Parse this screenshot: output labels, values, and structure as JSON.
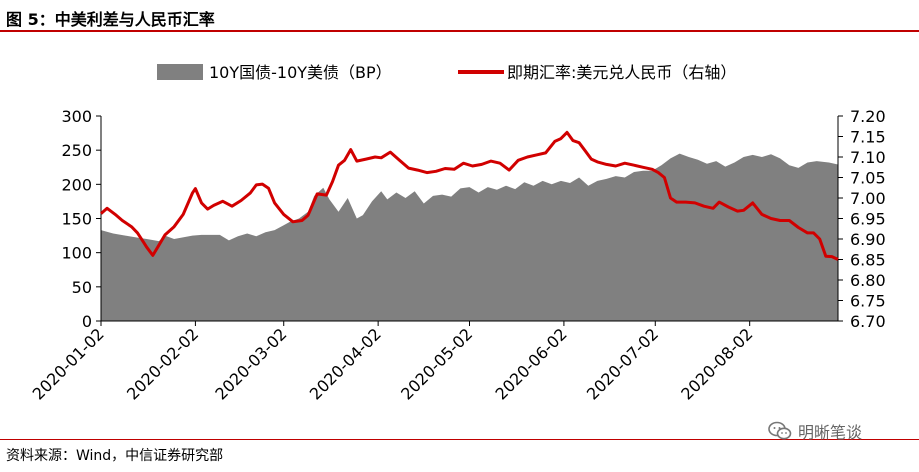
{
  "title": "图 5：中美利差与人民币汇率",
  "source": "资料来源：Wind，中信证券研究部",
  "watermark": "明晰笔谈",
  "chart_data": {
    "type": "area+line",
    "x_start": "2020-01-02",
    "x_end": "2020-08-31",
    "x_tick_labels": [
      "2020-01-02",
      "2020-02-02",
      "2020-03-02",
      "2020-04-02",
      "2020-05-02",
      "2020-06-02",
      "2020-07-02",
      "2020-08-02"
    ],
    "y_left": {
      "ylim": [
        0,
        300
      ],
      "ticks": [
        0,
        50,
        100,
        150,
        200,
        250,
        300
      ]
    },
    "y_right": {
      "ylim": [
        6.7,
        7.2
      ],
      "ticks": [
        "6.70",
        "6.75",
        "6.80",
        "6.85",
        "6.90",
        "6.95",
        "7.00",
        "7.05",
        "7.10",
        "7.15",
        "7.20"
      ]
    },
    "colors": {
      "area": "#808080",
      "line": "#d10000"
    },
    "legend_position": "top",
    "series": [
      {
        "name": "10Y国债-10Y美债（BP）",
        "axis": "left",
        "style": "area",
        "points": [
          [
            "2020-01-02",
            133
          ],
          [
            "2020-01-06",
            128
          ],
          [
            "2020-01-10",
            125
          ],
          [
            "2020-01-14",
            122
          ],
          [
            "2020-01-17",
            120
          ],
          [
            "2020-01-21",
            117
          ],
          [
            "2020-01-23",
            125
          ],
          [
            "2020-01-26",
            120
          ],
          [
            "2020-02-01",
            125
          ],
          [
            "2020-02-04",
            126
          ],
          [
            "2020-02-07",
            126
          ],
          [
            "2020-02-10",
            126
          ],
          [
            "2020-02-13",
            118
          ],
          [
            "2020-02-16",
            124
          ],
          [
            "2020-02-19",
            128
          ],
          [
            "2020-02-22",
            124
          ],
          [
            "2020-02-25",
            130
          ],
          [
            "2020-02-28",
            133
          ],
          [
            "2020-03-02",
            140
          ],
          [
            "2020-03-04",
            145
          ],
          [
            "2020-03-07",
            150
          ],
          [
            "2020-03-10",
            160
          ],
          [
            "2020-03-12",
            183
          ],
          [
            "2020-03-15",
            195
          ],
          [
            "2020-03-17",
            178
          ],
          [
            "2020-03-20",
            160
          ],
          [
            "2020-03-23",
            180
          ],
          [
            "2020-03-26",
            150
          ],
          [
            "2020-03-28",
            155
          ],
          [
            "2020-03-31",
            175
          ],
          [
            "2020-04-03",
            190
          ],
          [
            "2020-04-05",
            178
          ],
          [
            "2020-04-08",
            188
          ],
          [
            "2020-04-11",
            180
          ],
          [
            "2020-04-14",
            190
          ],
          [
            "2020-04-17",
            172
          ],
          [
            "2020-04-20",
            183
          ],
          [
            "2020-04-23",
            185
          ],
          [
            "2020-04-26",
            182
          ],
          [
            "2020-04-29",
            194
          ],
          [
            "2020-05-02",
            196
          ],
          [
            "2020-05-05",
            188
          ],
          [
            "2020-05-08",
            196
          ],
          [
            "2020-05-11",
            192
          ],
          [
            "2020-05-14",
            198
          ],
          [
            "2020-05-17",
            193
          ],
          [
            "2020-05-20",
            203
          ],
          [
            "2020-05-23",
            198
          ],
          [
            "2020-05-26",
            205
          ],
          [
            "2020-05-29",
            200
          ],
          [
            "2020-06-01",
            205
          ],
          [
            "2020-06-04",
            202
          ],
          [
            "2020-06-07",
            210
          ],
          [
            "2020-06-10",
            198
          ],
          [
            "2020-06-13",
            205
          ],
          [
            "2020-06-16",
            208
          ],
          [
            "2020-06-19",
            212
          ],
          [
            "2020-06-22",
            210
          ],
          [
            "2020-06-25",
            218
          ],
          [
            "2020-06-28",
            220
          ],
          [
            "2020-07-01",
            220
          ],
          [
            "2020-07-04",
            228
          ],
          [
            "2020-07-07",
            238
          ],
          [
            "2020-07-10",
            245
          ],
          [
            "2020-07-13",
            240
          ],
          [
            "2020-07-16",
            236
          ],
          [
            "2020-07-19",
            230
          ],
          [
            "2020-07-22",
            234
          ],
          [
            "2020-07-25",
            226
          ],
          [
            "2020-07-28",
            232
          ],
          [
            "2020-07-31",
            240
          ],
          [
            "2020-08-03",
            243
          ],
          [
            "2020-08-06",
            240
          ],
          [
            "2020-08-09",
            244
          ],
          [
            "2020-08-12",
            238
          ],
          [
            "2020-08-15",
            228
          ],
          [
            "2020-08-18",
            224
          ],
          [
            "2020-08-21",
            232
          ],
          [
            "2020-08-24",
            234
          ],
          [
            "2020-08-28",
            232
          ],
          [
            "2020-08-31",
            229
          ]
        ]
      },
      {
        "name": "即期汇率:美元兑人民币（右轴）",
        "axis": "right",
        "style": "line",
        "points": [
          [
            "2020-01-02",
            6.962
          ],
          [
            "2020-01-04",
            6.975
          ],
          [
            "2020-01-07",
            6.958
          ],
          [
            "2020-01-09",
            6.945
          ],
          [
            "2020-01-12",
            6.93
          ],
          [
            "2020-01-14",
            6.915
          ],
          [
            "2020-01-16",
            6.892
          ],
          [
            "2020-01-17",
            6.88
          ],
          [
            "2020-01-19",
            6.86
          ],
          [
            "2020-01-21",
            6.885
          ],
          [
            "2020-01-23",
            6.91
          ],
          [
            "2020-01-26",
            6.93
          ],
          [
            "2020-01-29",
            6.96
          ],
          [
            "2020-02-01",
            7.012
          ],
          [
            "2020-02-02",
            7.023
          ],
          [
            "2020-02-04",
            6.988
          ],
          [
            "2020-02-06",
            6.973
          ],
          [
            "2020-02-08",
            6.982
          ],
          [
            "2020-02-11",
            6.992
          ],
          [
            "2020-02-14",
            6.98
          ],
          [
            "2020-02-17",
            6.994
          ],
          [
            "2020-02-20",
            7.012
          ],
          [
            "2020-02-22",
            7.032
          ],
          [
            "2020-02-24",
            7.034
          ],
          [
            "2020-02-26",
            7.024
          ],
          [
            "2020-02-28",
            6.988
          ],
          [
            "2020-03-02",
            6.96
          ],
          [
            "2020-03-05",
            6.942
          ],
          [
            "2020-03-08",
            6.945
          ],
          [
            "2020-03-10",
            6.958
          ],
          [
            "2020-03-13",
            7.01
          ],
          [
            "2020-03-16",
            7.007
          ],
          [
            "2020-03-18",
            7.04
          ],
          [
            "2020-03-20",
            7.08
          ],
          [
            "2020-03-22",
            7.092
          ],
          [
            "2020-03-24",
            7.118
          ],
          [
            "2020-03-26",
            7.09
          ],
          [
            "2020-03-29",
            7.095
          ],
          [
            "2020-04-01",
            7.1
          ],
          [
            "2020-04-03",
            7.098
          ],
          [
            "2020-04-06",
            7.112
          ],
          [
            "2020-04-09",
            7.092
          ],
          [
            "2020-04-12",
            7.073
          ],
          [
            "2020-04-15",
            7.068
          ],
          [
            "2020-04-18",
            7.062
          ],
          [
            "2020-04-21",
            7.065
          ],
          [
            "2020-04-24",
            7.072
          ],
          [
            "2020-04-27",
            7.07
          ],
          [
            "2020-04-30",
            7.085
          ],
          [
            "2020-05-03",
            7.078
          ],
          [
            "2020-05-06",
            7.082
          ],
          [
            "2020-05-09",
            7.09
          ],
          [
            "2020-05-12",
            7.085
          ],
          [
            "2020-05-15",
            7.068
          ],
          [
            "2020-05-18",
            7.092
          ],
          [
            "2020-05-21",
            7.1
          ],
          [
            "2020-05-24",
            7.105
          ],
          [
            "2020-05-27",
            7.11
          ],
          [
            "2020-05-30",
            7.138
          ],
          [
            "2020-06-01",
            7.145
          ],
          [
            "2020-06-03",
            7.16
          ],
          [
            "2020-06-05",
            7.14
          ],
          [
            "2020-06-07",
            7.135
          ],
          [
            "2020-06-09",
            7.115
          ],
          [
            "2020-06-11",
            7.095
          ],
          [
            "2020-06-13",
            7.088
          ],
          [
            "2020-06-16",
            7.082
          ],
          [
            "2020-06-19",
            7.078
          ],
          [
            "2020-06-22",
            7.085
          ],
          [
            "2020-06-25",
            7.08
          ],
          [
            "2020-06-28",
            7.075
          ],
          [
            "2020-07-01",
            7.07
          ],
          [
            "2020-07-03",
            7.062
          ],
          [
            "2020-07-05",
            7.05
          ],
          [
            "2020-07-07",
            7.0
          ],
          [
            "2020-07-09",
            6.99
          ],
          [
            "2020-07-12",
            6.99
          ],
          [
            "2020-07-15",
            6.988
          ],
          [
            "2020-07-18",
            6.98
          ],
          [
            "2020-07-21",
            6.975
          ],
          [
            "2020-07-23",
            6.99
          ],
          [
            "2020-07-26",
            6.978
          ],
          [
            "2020-07-29",
            6.968
          ],
          [
            "2020-07-31",
            6.97
          ],
          [
            "2020-08-03",
            6.988
          ],
          [
            "2020-08-06",
            6.96
          ],
          [
            "2020-08-09",
            6.95
          ],
          [
            "2020-08-12",
            6.945
          ],
          [
            "2020-08-15",
            6.945
          ],
          [
            "2020-08-18",
            6.928
          ],
          [
            "2020-08-21",
            6.915
          ],
          [
            "2020-08-23",
            6.915
          ],
          [
            "2020-08-25",
            6.9
          ],
          [
            "2020-08-27",
            6.858
          ],
          [
            "2020-08-29",
            6.857
          ],
          [
            "2020-08-31",
            6.85
          ]
        ]
      }
    ]
  }
}
